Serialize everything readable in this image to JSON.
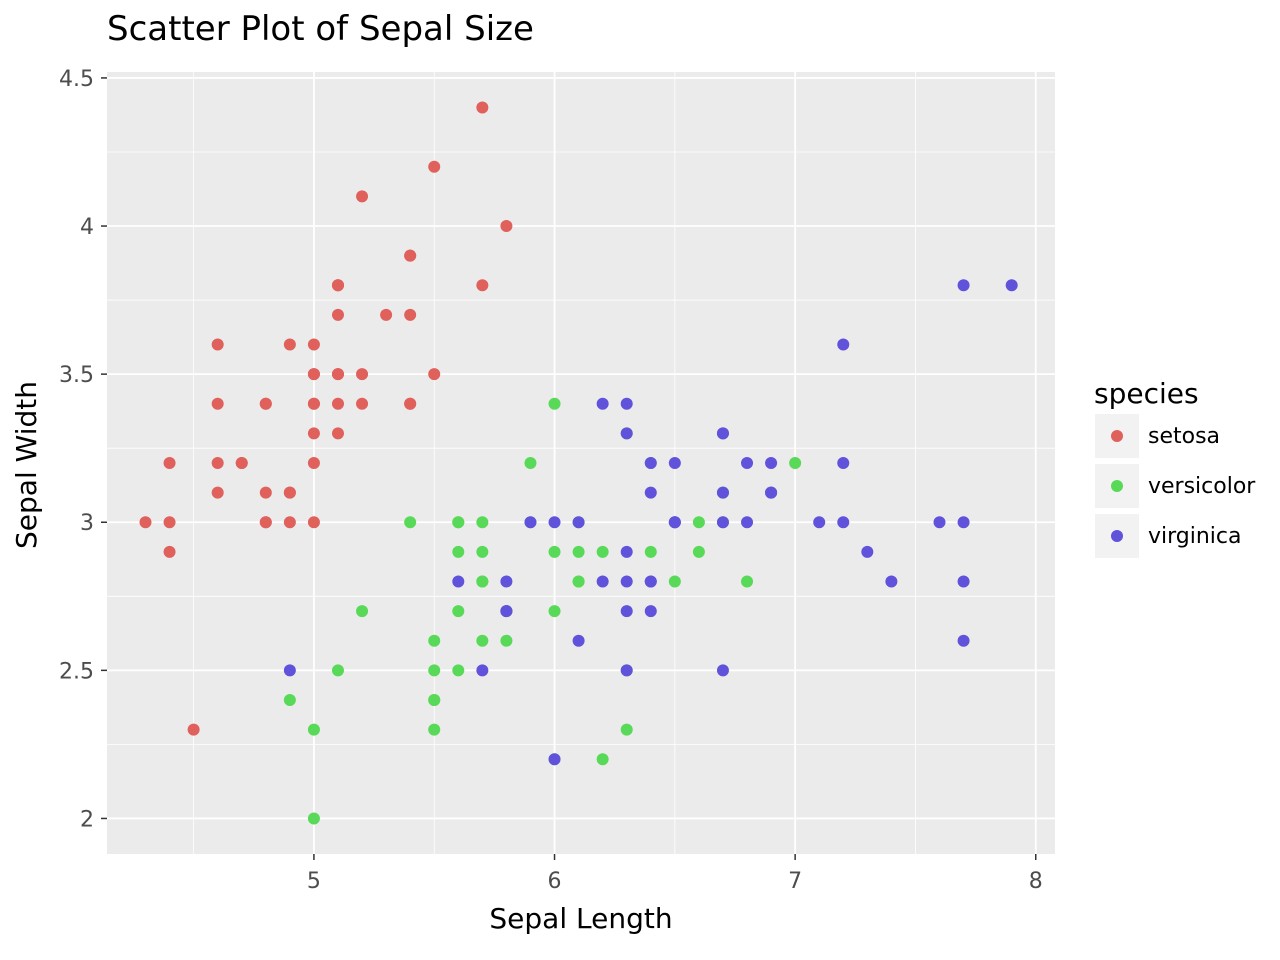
{
  "chart_data": {
    "type": "scatter",
    "title": "Scatter Plot of Sepal Size",
    "xlabel": "Sepal Length",
    "ylabel": "Sepal Width",
    "xlim": [
      4.14,
      8.08
    ],
    "ylim": [
      1.88,
      4.52
    ],
    "x_ticks": [
      5,
      6,
      7,
      8
    ],
    "x_tick_labels": [
      "5",
      "6",
      "7",
      "8"
    ],
    "y_ticks": [
      2,
      2.5,
      3,
      3.5,
      4,
      4.5
    ],
    "y_tick_labels": [
      "2",
      "2.5",
      "3",
      "3.5",
      "4",
      "4.5"
    ],
    "grid": true,
    "legend": {
      "title": "species",
      "position": "right"
    },
    "series": [
      {
        "name": "setosa",
        "color": "#E0605B",
        "points": [
          [
            5.1,
            3.5
          ],
          [
            4.9,
            3.0
          ],
          [
            4.7,
            3.2
          ],
          [
            4.6,
            3.1
          ],
          [
            5.0,
            3.6
          ],
          [
            5.4,
            3.9
          ],
          [
            4.6,
            3.4
          ],
          [
            5.0,
            3.4
          ],
          [
            4.4,
            2.9
          ],
          [
            4.9,
            3.1
          ],
          [
            5.4,
            3.7
          ],
          [
            4.8,
            3.4
          ],
          [
            4.8,
            3.0
          ],
          [
            4.3,
            3.0
          ],
          [
            5.8,
            4.0
          ],
          [
            5.7,
            4.4
          ],
          [
            5.4,
            3.9
          ],
          [
            5.1,
            3.5
          ],
          [
            5.7,
            3.8
          ],
          [
            5.1,
            3.8
          ],
          [
            5.4,
            3.4
          ],
          [
            5.1,
            3.7
          ],
          [
            4.6,
            3.6
          ],
          [
            5.1,
            3.3
          ],
          [
            4.8,
            3.4
          ],
          [
            5.0,
            3.0
          ],
          [
            5.0,
            3.4
          ],
          [
            5.2,
            3.5
          ],
          [
            5.2,
            3.4
          ],
          [
            4.7,
            3.2
          ],
          [
            4.8,
            3.1
          ],
          [
            5.4,
            3.4
          ],
          [
            5.2,
            4.1
          ],
          [
            5.5,
            4.2
          ],
          [
            4.9,
            3.1
          ],
          [
            5.0,
            3.2
          ],
          [
            5.5,
            3.5
          ],
          [
            4.9,
            3.6
          ],
          [
            4.4,
            3.0
          ],
          [
            5.1,
            3.4
          ],
          [
            5.0,
            3.5
          ],
          [
            4.5,
            2.3
          ],
          [
            4.4,
            3.2
          ],
          [
            5.0,
            3.5
          ],
          [
            5.1,
            3.8
          ],
          [
            4.8,
            3.0
          ],
          [
            5.1,
            3.8
          ],
          [
            4.6,
            3.2
          ],
          [
            5.3,
            3.7
          ],
          [
            5.0,
            3.3
          ]
        ]
      },
      {
        "name": "versicolor",
        "color": "#58D958",
        "points": [
          [
            7.0,
            3.2
          ],
          [
            6.4,
            3.2
          ],
          [
            6.9,
            3.1
          ],
          [
            5.5,
            2.3
          ],
          [
            6.5,
            2.8
          ],
          [
            5.7,
            2.8
          ],
          [
            6.3,
            3.3
          ],
          [
            4.9,
            2.4
          ],
          [
            6.6,
            2.9
          ],
          [
            5.2,
            2.7
          ],
          [
            5.0,
            2.0
          ],
          [
            5.9,
            3.0
          ],
          [
            6.0,
            2.2
          ],
          [
            6.1,
            2.9
          ],
          [
            5.6,
            2.9
          ],
          [
            6.7,
            3.1
          ],
          [
            5.6,
            3.0
          ],
          [
            5.8,
            2.7
          ],
          [
            6.2,
            2.2
          ],
          [
            5.6,
            2.5
          ],
          [
            5.9,
            3.2
          ],
          [
            6.1,
            2.8
          ],
          [
            6.3,
            2.5
          ],
          [
            6.1,
            2.8
          ],
          [
            6.4,
            2.9
          ],
          [
            6.6,
            3.0
          ],
          [
            6.8,
            2.8
          ],
          [
            6.7,
            3.0
          ],
          [
            6.0,
            2.9
          ],
          [
            5.7,
            2.6
          ],
          [
            5.5,
            2.4
          ],
          [
            5.5,
            2.4
          ],
          [
            5.8,
            2.7
          ],
          [
            6.0,
            2.7
          ],
          [
            5.4,
            3.0
          ],
          [
            6.0,
            3.4
          ],
          [
            6.7,
            3.1
          ],
          [
            6.3,
            2.3
          ],
          [
            5.6,
            3.0
          ],
          [
            5.5,
            2.5
          ],
          [
            5.5,
            2.6
          ],
          [
            6.1,
            3.0
          ],
          [
            5.8,
            2.6
          ],
          [
            5.0,
            2.3
          ],
          [
            5.6,
            2.7
          ],
          [
            5.7,
            3.0
          ],
          [
            5.7,
            2.9
          ],
          [
            6.2,
            2.9
          ],
          [
            5.1,
            2.5
          ],
          [
            5.7,
            2.8
          ]
        ]
      },
      {
        "name": "virginica",
        "color": "#6052DB",
        "points": [
          [
            6.3,
            3.3
          ],
          [
            5.8,
            2.7
          ],
          [
            7.1,
            3.0
          ],
          [
            6.3,
            2.9
          ],
          [
            6.5,
            3.0
          ],
          [
            7.6,
            3.0
          ],
          [
            4.9,
            2.5
          ],
          [
            7.3,
            2.9
          ],
          [
            6.7,
            2.5
          ],
          [
            7.2,
            3.6
          ],
          [
            6.5,
            3.2
          ],
          [
            6.4,
            2.7
          ],
          [
            6.8,
            3.0
          ],
          [
            5.7,
            2.5
          ],
          [
            5.8,
            2.8
          ],
          [
            6.4,
            3.2
          ],
          [
            6.5,
            3.0
          ],
          [
            7.7,
            3.8
          ],
          [
            7.7,
            2.6
          ],
          [
            6.0,
            2.2
          ],
          [
            6.9,
            3.2
          ],
          [
            5.6,
            2.8
          ],
          [
            7.7,
            2.8
          ],
          [
            6.3,
            2.7
          ],
          [
            6.7,
            3.3
          ],
          [
            7.2,
            3.2
          ],
          [
            6.2,
            2.8
          ],
          [
            6.1,
            3.0
          ],
          [
            6.4,
            2.8
          ],
          [
            7.2,
            3.0
          ],
          [
            7.4,
            2.8
          ],
          [
            7.9,
            3.8
          ],
          [
            6.4,
            2.8
          ],
          [
            6.3,
            2.8
          ],
          [
            6.1,
            2.6
          ],
          [
            7.7,
            3.0
          ],
          [
            6.3,
            3.4
          ],
          [
            6.4,
            3.1
          ],
          [
            6.0,
            3.0
          ],
          [
            6.9,
            3.1
          ],
          [
            6.7,
            3.1
          ],
          [
            6.9,
            3.1
          ],
          [
            5.8,
            2.7
          ],
          [
            6.8,
            3.2
          ],
          [
            6.7,
            3.3
          ],
          [
            6.7,
            3.0
          ],
          [
            6.3,
            2.5
          ],
          [
            6.5,
            3.0
          ],
          [
            6.2,
            3.4
          ],
          [
            5.9,
            3.0
          ]
        ]
      }
    ]
  }
}
